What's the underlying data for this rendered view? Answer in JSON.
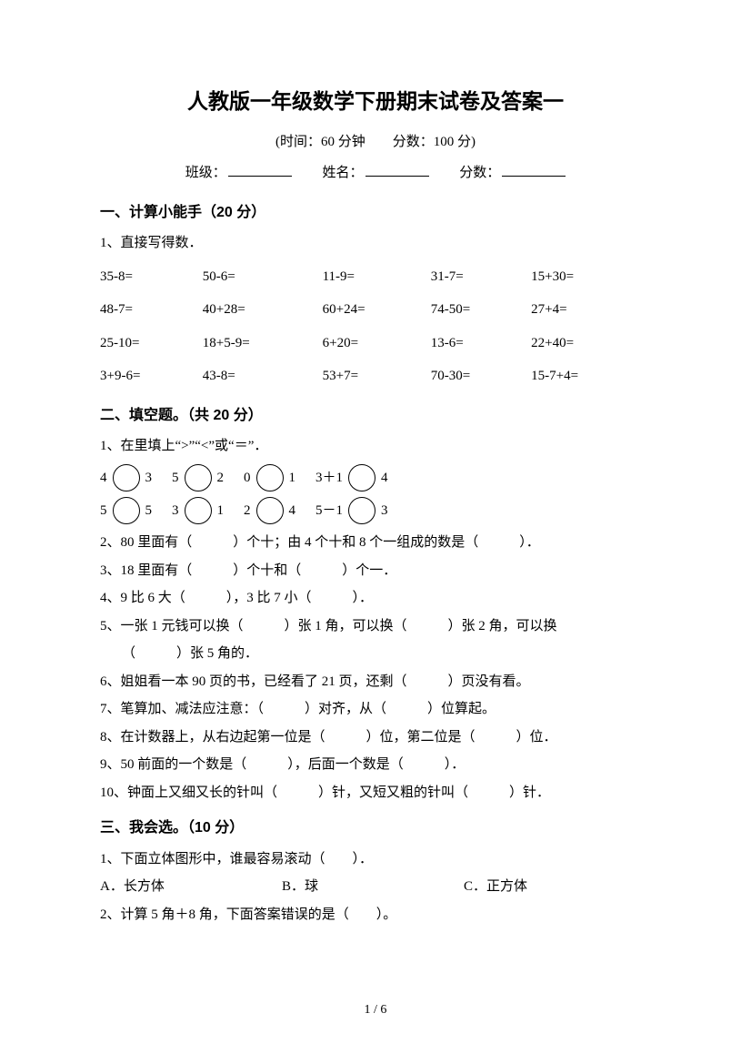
{
  "title": "人教版一年级数学下册期末试卷及答案一",
  "subtitle": "(时间：60 分钟　　分数：100 分)",
  "info": {
    "class_label": "班级：",
    "name_label": "姓名：",
    "score_label": "分数："
  },
  "s1": {
    "header": "一、计算小能手（20 分）",
    "q1": "1、直接写得数．",
    "rows": [
      [
        "35-8=",
        "50-6=",
        "11-9=",
        "31-7=",
        "15+30="
      ],
      [
        "48-7=",
        "40+28=",
        "60+24=",
        "74-50=",
        "27+4="
      ],
      [
        "25-10=",
        "18+5-9=",
        "6+20=",
        "13-6=",
        "22+40="
      ],
      [
        "3+9-6=",
        "43-8=",
        "53+7=",
        "70-30=",
        "15-7+4="
      ]
    ]
  },
  "s2": {
    "header": "二、填空题。（共 20 分）",
    "q1": "1、在里填上“>”“<”或“＝”．",
    "row1": [
      {
        "l": "4",
        "r": "3"
      },
      {
        "l": "5",
        "r": "2"
      },
      {
        "l": "0",
        "r": "1"
      },
      {
        "l": "3＋1",
        "r": "4"
      }
    ],
    "row2": [
      {
        "l": "5",
        "r": "5"
      },
      {
        "l": "3",
        "r": "1"
      },
      {
        "l": "2",
        "r": "4"
      },
      {
        "l": "5－1",
        "r": "3"
      }
    ],
    "q2": "2、80 里面有（　　　）个十；由 4 个十和 8 个一组成的数是（　　　）．",
    "q3": "3、18 里面有（　　　）个十和（　　　）个一．",
    "q4": "4、9 比 6 大（　　　），3 比 7 小（　　　）．",
    "q5a": "5、一张 1 元钱可以换（　　　）张 1 角，可以换（　　　）张 2 角，可以换",
    "q5b": "（　　　）张 5 角的．",
    "q6": "6、姐姐看一本 90 页的书，已经看了 21 页，还剩（　　　）页没有看。",
    "q7": "7、笔算加、减法应注意：（　　　）对齐，从（　　　）位算起。",
    "q8": "8、在计数器上，从右边起第一位是（　　　）位，第二位是（　　　）位．",
    "q9": "9、50 前面的一个数是（　　　），后面一个数是（　　　）．",
    "q10": "10、钟面上又细又长的针叫（　　　）针，又短又粗的针叫（　　　）针．"
  },
  "s3": {
    "header": "三、我会选。（10 分）",
    "q1": "1、下面立体图形中，谁最容易滚动（　　）．",
    "q1opts": {
      "a": "A．长方体",
      "b": "B．球",
      "c": "C．正方体"
    },
    "q2": "2、计算 5 角＋8 角，下面答案错误的是（　　）。"
  },
  "page": "1 / 6"
}
